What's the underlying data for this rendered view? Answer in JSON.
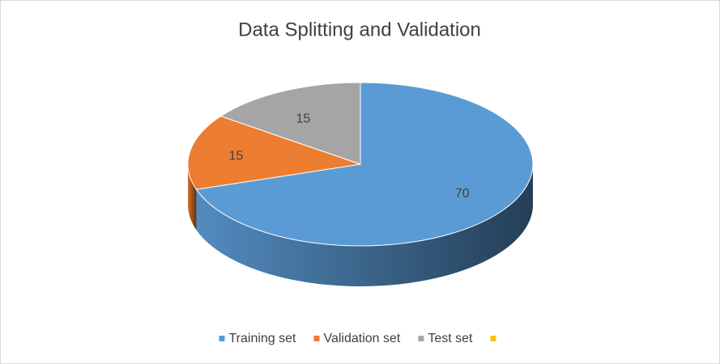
{
  "chart_data": {
    "type": "pie",
    "title": "Data Splitting and Validation",
    "categories": [
      "Training set",
      "Validation set",
      "Test set",
      null
    ],
    "values": [
      70,
      15,
      15,
      null
    ],
    "colors": [
      "#5b9bd5",
      "#ed7d31",
      "#a5a5a5",
      "#ffc000"
    ],
    "legend": "bottom",
    "three_d": true
  }
}
